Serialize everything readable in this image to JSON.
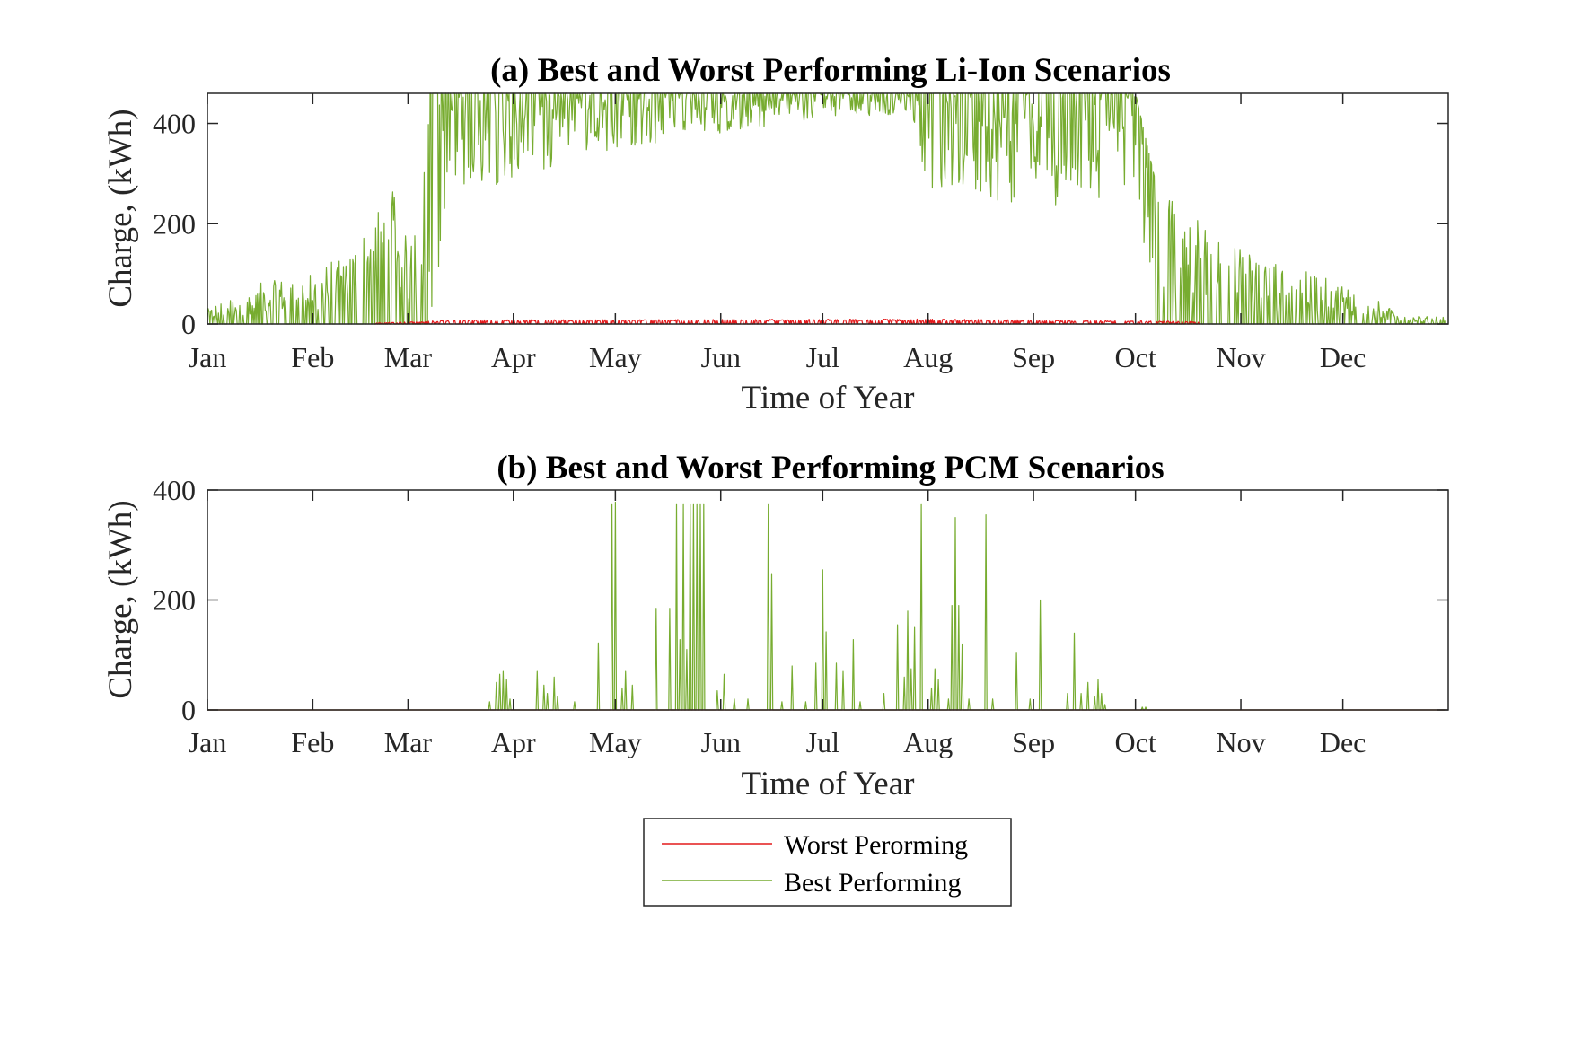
{
  "colors": {
    "worst": "#e41a1c",
    "best": "#77ac30",
    "axis": "#262626"
  },
  "legend": {
    "entries": [
      {
        "label": "Worst Perorming",
        "color_key": "worst"
      },
      {
        "label": "Best Performing",
        "color_key": "best"
      }
    ],
    "placement": "bottom-center"
  },
  "chart_data": [
    {
      "type": "line",
      "title": "(a) Best and Worst Performing Li-Ion Scenarios",
      "xlabel": "Time of Year",
      "ylabel": "Charge, (kWh)",
      "ylim": [
        0,
        460
      ],
      "xlim": [
        1,
        366
      ],
      "x_ticks": [
        {
          "x": 1,
          "label": "Jan"
        },
        {
          "x": 32,
          "label": "Feb"
        },
        {
          "x": 60,
          "label": "Mar"
        },
        {
          "x": 91,
          "label": "Apr"
        },
        {
          "x": 121,
          "label": "May"
        },
        {
          "x": 152,
          "label": "Jun"
        },
        {
          "x": 182,
          "label": "Jul"
        },
        {
          "x": 213,
          "label": "Aug"
        },
        {
          "x": 244,
          "label": "Sep"
        },
        {
          "x": 274,
          "label": "Oct"
        },
        {
          "x": 305,
          "label": "Nov"
        },
        {
          "x": 335,
          "label": "Dec"
        }
      ],
      "y_ticks": [
        0,
        200,
        400
      ],
      "grid": false,
      "series": [
        {
          "name": "Best Performing",
          "color_key": "best",
          "x_unit": "day of year",
          "envelope": [
            {
              "x": 1,
              "low": 0,
              "high": 30
            },
            {
              "x": 15,
              "low": 0,
              "high": 80
            },
            {
              "x": 32,
              "low": 0,
              "high": 100
            },
            {
              "x": 45,
              "low": 0,
              "high": 160
            },
            {
              "x": 55,
              "low": 0,
              "high": 280
            },
            {
              "x": 60,
              "low": 0,
              "high": 160
            },
            {
              "x": 66,
              "low": 0,
              "high": 460
            },
            {
              "x": 75,
              "low": 250,
              "high": 460
            },
            {
              "x": 91,
              "low": 290,
              "high": 460
            },
            {
              "x": 121,
              "low": 350,
              "high": 460
            },
            {
              "x": 152,
              "low": 380,
              "high": 460
            },
            {
              "x": 182,
              "low": 410,
              "high": 460
            },
            {
              "x": 208,
              "low": 420,
              "high": 460
            },
            {
              "x": 213,
              "low": 270,
              "high": 460
            },
            {
              "x": 244,
              "low": 230,
              "high": 460
            },
            {
              "x": 274,
              "low": 260,
              "high": 460
            },
            {
              "x": 280,
              "low": 0,
              "high": 280
            },
            {
              "x": 305,
              "low": 0,
              "high": 150
            },
            {
              "x": 335,
              "low": 0,
              "high": 80
            },
            {
              "x": 355,
              "low": 0,
              "high": 15
            },
            {
              "x": 365,
              "low": 0,
              "high": 15
            }
          ]
        },
        {
          "name": "Worst Perorming",
          "color_key": "worst",
          "x_unit": "day of year",
          "envelope": [
            {
              "x": 50,
              "low": 0,
              "high": 2
            },
            {
              "x": 75,
              "low": 0,
              "high": 8
            },
            {
              "x": 213,
              "low": 0,
              "high": 10
            },
            {
              "x": 293,
              "low": 0,
              "high": 5
            }
          ]
        }
      ]
    },
    {
      "type": "line",
      "title": "(b) Best and Worst Performing PCM Scenarios",
      "xlabel": "Time of Year",
      "ylabel": "Charge, (kWh)",
      "ylim": [
        0,
        400
      ],
      "xlim": [
        1,
        366
      ],
      "x_ticks": [
        {
          "x": 1,
          "label": "Jan"
        },
        {
          "x": 32,
          "label": "Feb"
        },
        {
          "x": 60,
          "label": "Mar"
        },
        {
          "x": 91,
          "label": "Apr"
        },
        {
          "x": 121,
          "label": "May"
        },
        {
          "x": 152,
          "label": "Jun"
        },
        {
          "x": 182,
          "label": "Jul"
        },
        {
          "x": 213,
          "label": "Aug"
        },
        {
          "x": 244,
          "label": "Sep"
        },
        {
          "x": 274,
          "label": "Oct"
        },
        {
          "x": 305,
          "label": "Nov"
        },
        {
          "x": 335,
          "label": "Dec"
        }
      ],
      "y_ticks": [
        0,
        200,
        400
      ],
      "grid": false,
      "series": [
        {
          "name": "Best Performing",
          "color_key": "best",
          "x_unit": "day of year",
          "baseline": 0,
          "spikes": [
            {
              "x": 84,
              "y": 15
            },
            {
              "x": 86,
              "y": 50
            },
            {
              "x": 87,
              "y": 65
            },
            {
              "x": 88,
              "y": 70
            },
            {
              "x": 89,
              "y": 55
            },
            {
              "x": 90,
              "y": 20
            },
            {
              "x": 98,
              "y": 70
            },
            {
              "x": 100,
              "y": 45
            },
            {
              "x": 101,
              "y": 30
            },
            {
              "x": 103,
              "y": 60
            },
            {
              "x": 104,
              "y": 25
            },
            {
              "x": 109,
              "y": 15
            },
            {
              "x": 116,
              "y": 122
            },
            {
              "x": 120,
              "y": 375
            },
            {
              "x": 121,
              "y": 378
            },
            {
              "x": 123,
              "y": 40
            },
            {
              "x": 124,
              "y": 70
            },
            {
              "x": 126,
              "y": 45
            },
            {
              "x": 133,
              "y": 185
            },
            {
              "x": 137,
              "y": 185
            },
            {
              "x": 139,
              "y": 375
            },
            {
              "x": 140,
              "y": 128
            },
            {
              "x": 141,
              "y": 375
            },
            {
              "x": 142,
              "y": 110
            },
            {
              "x": 143,
              "y": 375
            },
            {
              "x": 144,
              "y": 375
            },
            {
              "x": 145,
              "y": 375
            },
            {
              "x": 146,
              "y": 375
            },
            {
              "x": 147,
              "y": 375
            },
            {
              "x": 151,
              "y": 35
            },
            {
              "x": 153,
              "y": 65
            },
            {
              "x": 156,
              "y": 20
            },
            {
              "x": 160,
              "y": 20
            },
            {
              "x": 166,
              "y": 375
            },
            {
              "x": 167,
              "y": 248
            },
            {
              "x": 170,
              "y": 15
            },
            {
              "x": 173,
              "y": 80
            },
            {
              "x": 177,
              "y": 15
            },
            {
              "x": 180,
              "y": 85
            },
            {
              "x": 182,
              "y": 255
            },
            {
              "x": 183,
              "y": 142
            },
            {
              "x": 186,
              "y": 85
            },
            {
              "x": 188,
              "y": 70
            },
            {
              "x": 191,
              "y": 128
            },
            {
              "x": 193,
              "y": 15
            },
            {
              "x": 200,
              "y": 30
            },
            {
              "x": 204,
              "y": 155
            },
            {
              "x": 206,
              "y": 60
            },
            {
              "x": 207,
              "y": 180
            },
            {
              "x": 208,
              "y": 75
            },
            {
              "x": 209,
              "y": 150
            },
            {
              "x": 211,
              "y": 375
            },
            {
              "x": 214,
              "y": 40
            },
            {
              "x": 215,
              "y": 75
            },
            {
              "x": 216,
              "y": 55
            },
            {
              "x": 219,
              "y": 20
            },
            {
              "x": 220,
              "y": 190
            },
            {
              "x": 221,
              "y": 350
            },
            {
              "x": 222,
              "y": 190
            },
            {
              "x": 223,
              "y": 120
            },
            {
              "x": 225,
              "y": 20
            },
            {
              "x": 230,
              "y": 355
            },
            {
              "x": 232,
              "y": 20
            },
            {
              "x": 239,
              "y": 105
            },
            {
              "x": 243,
              "y": 20
            },
            {
              "x": 246,
              "y": 200
            },
            {
              "x": 254,
              "y": 30
            },
            {
              "x": 256,
              "y": 140
            },
            {
              "x": 258,
              "y": 30
            },
            {
              "x": 260,
              "y": 50
            },
            {
              "x": 262,
              "y": 25
            },
            {
              "x": 263,
              "y": 55
            },
            {
              "x": 264,
              "y": 30
            },
            {
              "x": 265,
              "y": 10
            },
            {
              "x": 276,
              "y": 5
            },
            {
              "x": 277,
              "y": 5
            }
          ]
        },
        {
          "name": "Worst Perorming",
          "color_key": "worst",
          "x_unit": "day of year",
          "baseline": 0,
          "spikes": []
        }
      ]
    }
  ]
}
